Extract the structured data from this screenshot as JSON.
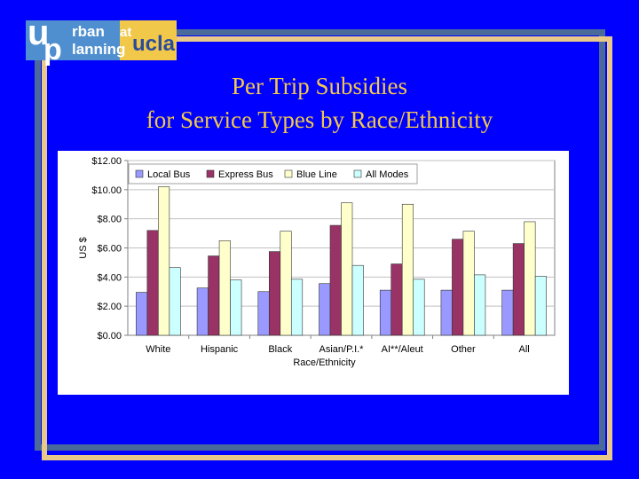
{
  "logo": {
    "u": "u",
    "rban": "rban",
    "p": "p",
    "lanning": "lanning",
    "at": "at",
    "ucla": "ucla"
  },
  "title": {
    "line1": "Per Trip Subsidies",
    "line2": "for Service Types by Race/Ethnicity"
  },
  "chart_data": {
    "type": "bar",
    "categories": [
      "White",
      "Hispanic",
      "Black",
      "Asian/P.I.*",
      "AI**/Aleut",
      "Other",
      "All"
    ],
    "series": [
      {
        "name": "Local Bus",
        "color": "#9999ff",
        "values": [
          2.95,
          3.25,
          3.0,
          3.55,
          3.1,
          3.1,
          3.1
        ]
      },
      {
        "name": "Express Bus",
        "color": "#993366",
        "values": [
          7.2,
          5.45,
          5.75,
          7.55,
          4.9,
          6.6,
          6.3
        ]
      },
      {
        "name": "Blue Line",
        "color": "#ffffcc",
        "values": [
          10.2,
          6.5,
          7.15,
          9.1,
          9.0,
          7.15,
          7.8
        ]
      },
      {
        "name": "All Modes",
        "color": "#ccffff",
        "values": [
          4.65,
          3.8,
          3.85,
          4.8,
          3.85,
          4.15,
          4.05
        ]
      }
    ],
    "yticks": [
      "$0.00",
      "$2.00",
      "$4.00",
      "$6.00",
      "$8.00",
      "$10.00",
      "$12.00"
    ],
    "ylim": [
      0,
      12
    ],
    "xlabel": "Race/Ethnicity",
    "ylabel": "US $",
    "legend": "top-left",
    "grid": true
  }
}
